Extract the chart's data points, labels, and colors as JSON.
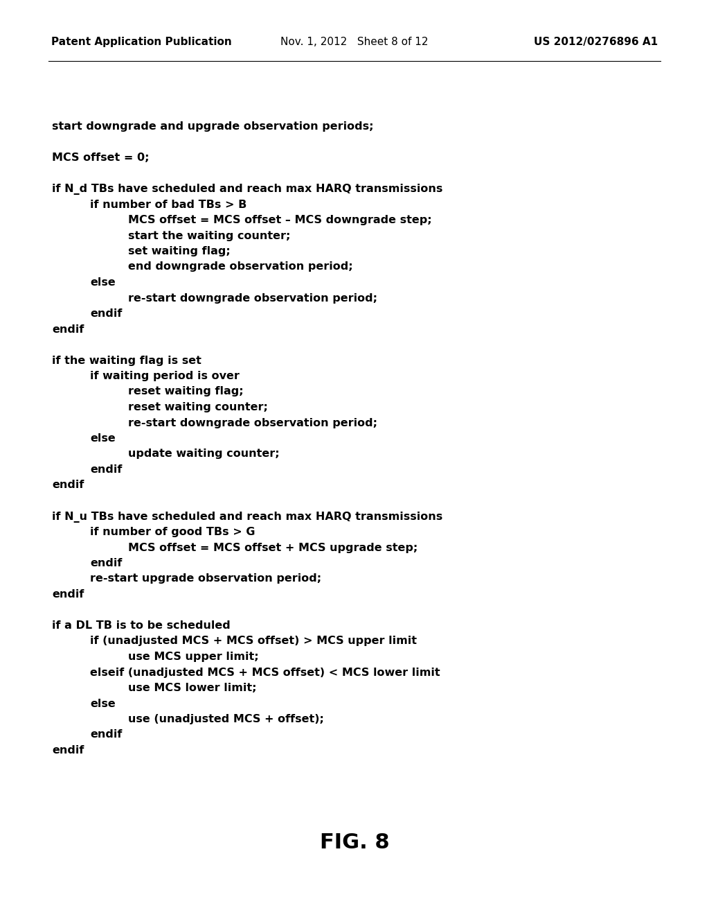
{
  "background_color": "#ffffff",
  "header_left": "Patent Application Publication",
  "header_mid": "Nov. 1, 2012   Sheet 8 of 12",
  "header_right": "US 2012/0276896 A1",
  "figure_label": "FIG. 8",
  "text_color": "#000000",
  "code_lines": [
    {
      "text": "start downgrade and upgrade observation periods;",
      "indent": 0
    },
    {
      "text": "",
      "indent": 0
    },
    {
      "text": "MCS offset = 0;",
      "indent": 0
    },
    {
      "text": "",
      "indent": 0
    },
    {
      "text": "if N_d TBs have scheduled and reach max HARQ transmissions",
      "indent": 0
    },
    {
      "text": "if number of bad TBs > B",
      "indent": 1
    },
    {
      "text": "MCS offset = MCS offset – MCS downgrade step;",
      "indent": 2
    },
    {
      "text": "start the waiting counter;",
      "indent": 2
    },
    {
      "text": "set waiting flag;",
      "indent": 2
    },
    {
      "text": "end downgrade observation period;",
      "indent": 2
    },
    {
      "text": "else",
      "indent": 1
    },
    {
      "text": "re-start downgrade observation period;",
      "indent": 2
    },
    {
      "text": "endif",
      "indent": 1
    },
    {
      "text": "endif",
      "indent": 0
    },
    {
      "text": "",
      "indent": 0
    },
    {
      "text": "if the waiting flag is set",
      "indent": 0
    },
    {
      "text": "if waiting period is over",
      "indent": 1
    },
    {
      "text": "reset waiting flag;",
      "indent": 2
    },
    {
      "text": "reset waiting counter;",
      "indent": 2
    },
    {
      "text": "re-start downgrade observation period;",
      "indent": 2
    },
    {
      "text": "else",
      "indent": 1
    },
    {
      "text": "update waiting counter;",
      "indent": 2
    },
    {
      "text": "endif",
      "indent": 1
    },
    {
      "text": "endif",
      "indent": 0
    },
    {
      "text": "",
      "indent": 0
    },
    {
      "text": "if N_u TBs have scheduled and reach max HARQ transmissions",
      "indent": 0
    },
    {
      "text": "if number of good TBs > G",
      "indent": 1
    },
    {
      "text": "MCS offset = MCS offset + MCS upgrade step;",
      "indent": 2
    },
    {
      "text": "endif",
      "indent": 1
    },
    {
      "text": "re-start upgrade observation period;",
      "indent": 1
    },
    {
      "text": "endif",
      "indent": 0
    },
    {
      "text": "",
      "indent": 0
    },
    {
      "text": "if a DL TB is to be scheduled",
      "indent": 0
    },
    {
      "text": "if (unadjusted MCS + MCS offset) > MCS upper limit",
      "indent": 1
    },
    {
      "text": "use MCS upper limit;",
      "indent": 2
    },
    {
      "text": "elseif (unadjusted MCS + MCS offset) < MCS lower limit",
      "indent": 1
    },
    {
      "text": "use MCS lower limit;",
      "indent": 2
    },
    {
      "text": "else",
      "indent": 1
    },
    {
      "text": "use (unadjusted MCS + offset);",
      "indent": 2
    },
    {
      "text": "endif",
      "indent": 1
    },
    {
      "text": "endif",
      "indent": 0
    }
  ]
}
